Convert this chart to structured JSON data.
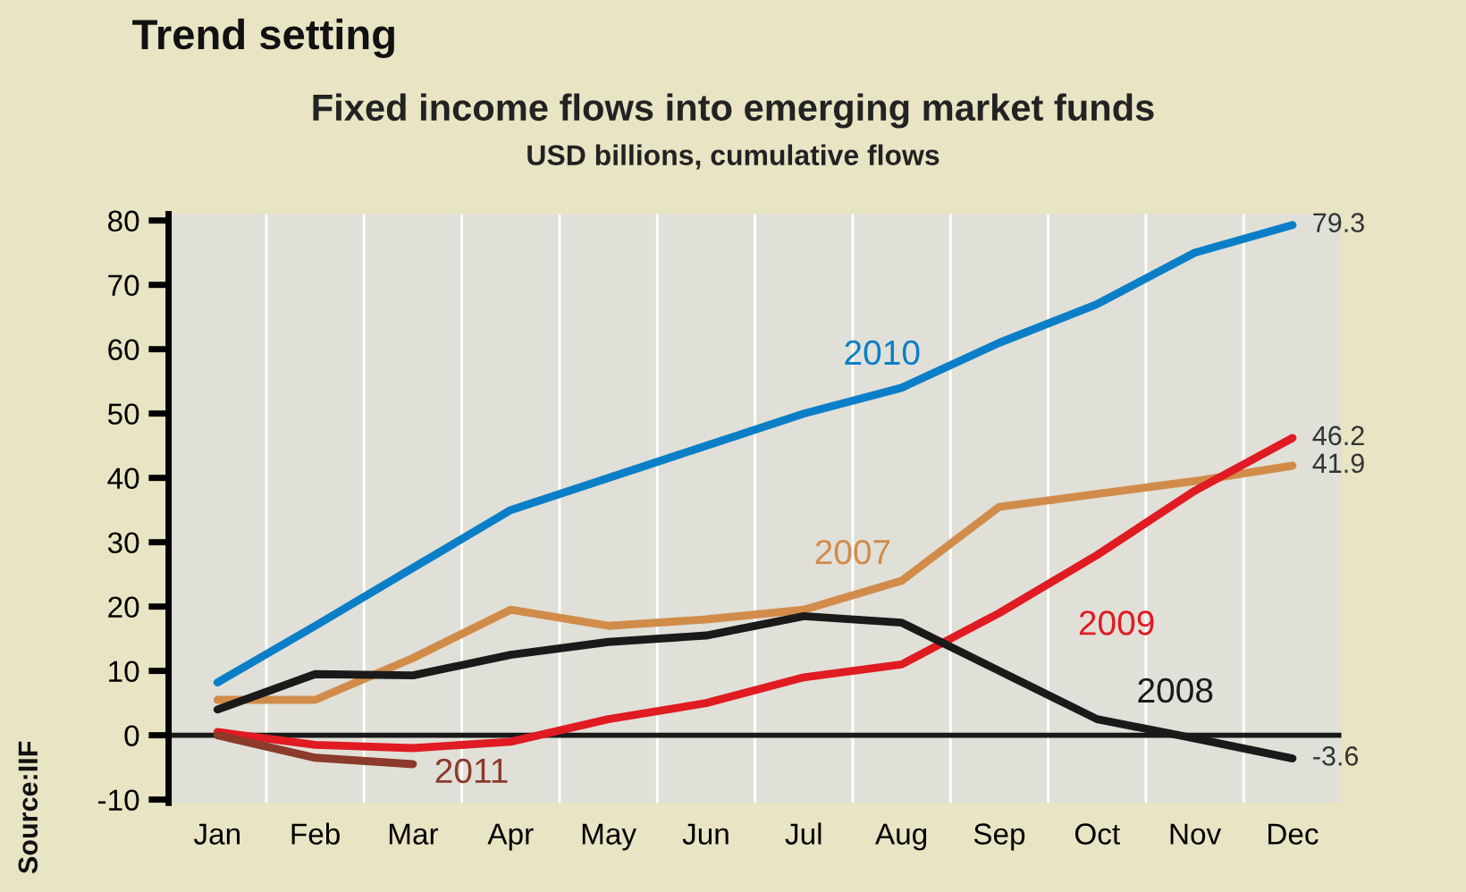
{
  "chart_data": {
    "type": "line",
    "title": "Fixed income flows into emerging market funds",
    "subtitle": "USD billions, cumulative flows",
    "annotations": [
      "Trend setting",
      "Source:IIF"
    ],
    "categories": [
      "Jan",
      "Feb",
      "Mar",
      "Apr",
      "May",
      "Jun",
      "Jul",
      "Aug",
      "Sep",
      "Oct",
      "Nov",
      "Dec"
    ],
    "series": [
      {
        "name": "2010",
        "color": "#0a7fc8",
        "values": [
          8.2,
          17,
          26,
          35,
          40,
          45,
          50,
          54,
          61,
          67,
          75,
          79.3
        ],
        "value_labels": [
          null,
          null,
          null,
          null,
          null,
          null,
          null,
          null,
          null,
          null,
          null,
          "79.3"
        ]
      },
      {
        "name": "2007",
        "color": "#d18c4a",
        "values": [
          5.5,
          5.5,
          12,
          19.5,
          17,
          18,
          19.5,
          24,
          35.5,
          37.5,
          39.5,
          41.9
        ],
        "value_labels": [
          null,
          null,
          null,
          null,
          null,
          null,
          null,
          null,
          null,
          null,
          null,
          "41.9"
        ]
      },
      {
        "name": "2009",
        "color": "#e01b22",
        "values": [
          0.5,
          -1.5,
          -2,
          -1,
          2.5,
          5,
          9,
          11,
          19,
          28,
          38,
          46.2
        ],
        "value_labels": [
          null,
          null,
          null,
          null,
          null,
          null,
          null,
          null,
          null,
          null,
          null,
          "46.2"
        ]
      },
      {
        "name": "2008",
        "color": "#1a1a1a",
        "values": [
          4,
          9.5,
          9.3,
          12.5,
          14.5,
          15.5,
          18.5,
          17.5,
          10,
          2.5,
          -0.5,
          -3.6
        ],
        "value_labels": [
          null,
          null,
          null,
          null,
          null,
          null,
          null,
          null,
          null,
          null,
          null,
          "-3.6"
        ]
      },
      {
        "name": "2011",
        "color": "#8b3a2b",
        "values": [
          0,
          -3.5,
          -4.5,
          null,
          null,
          null,
          null,
          null,
          null,
          null,
          null,
          null
        ]
      }
    ],
    "ylim": [
      -10.5,
      81
    ],
    "yticks": [
      -10,
      0,
      10,
      20,
      30,
      40,
      50,
      60,
      70,
      80
    ],
    "ref_lines": [
      {
        "axis": "y",
        "value": 0,
        "color": "#1a1a1a"
      }
    ],
    "grid": false,
    "legend": false,
    "marker": "none",
    "line_style": "solid"
  }
}
